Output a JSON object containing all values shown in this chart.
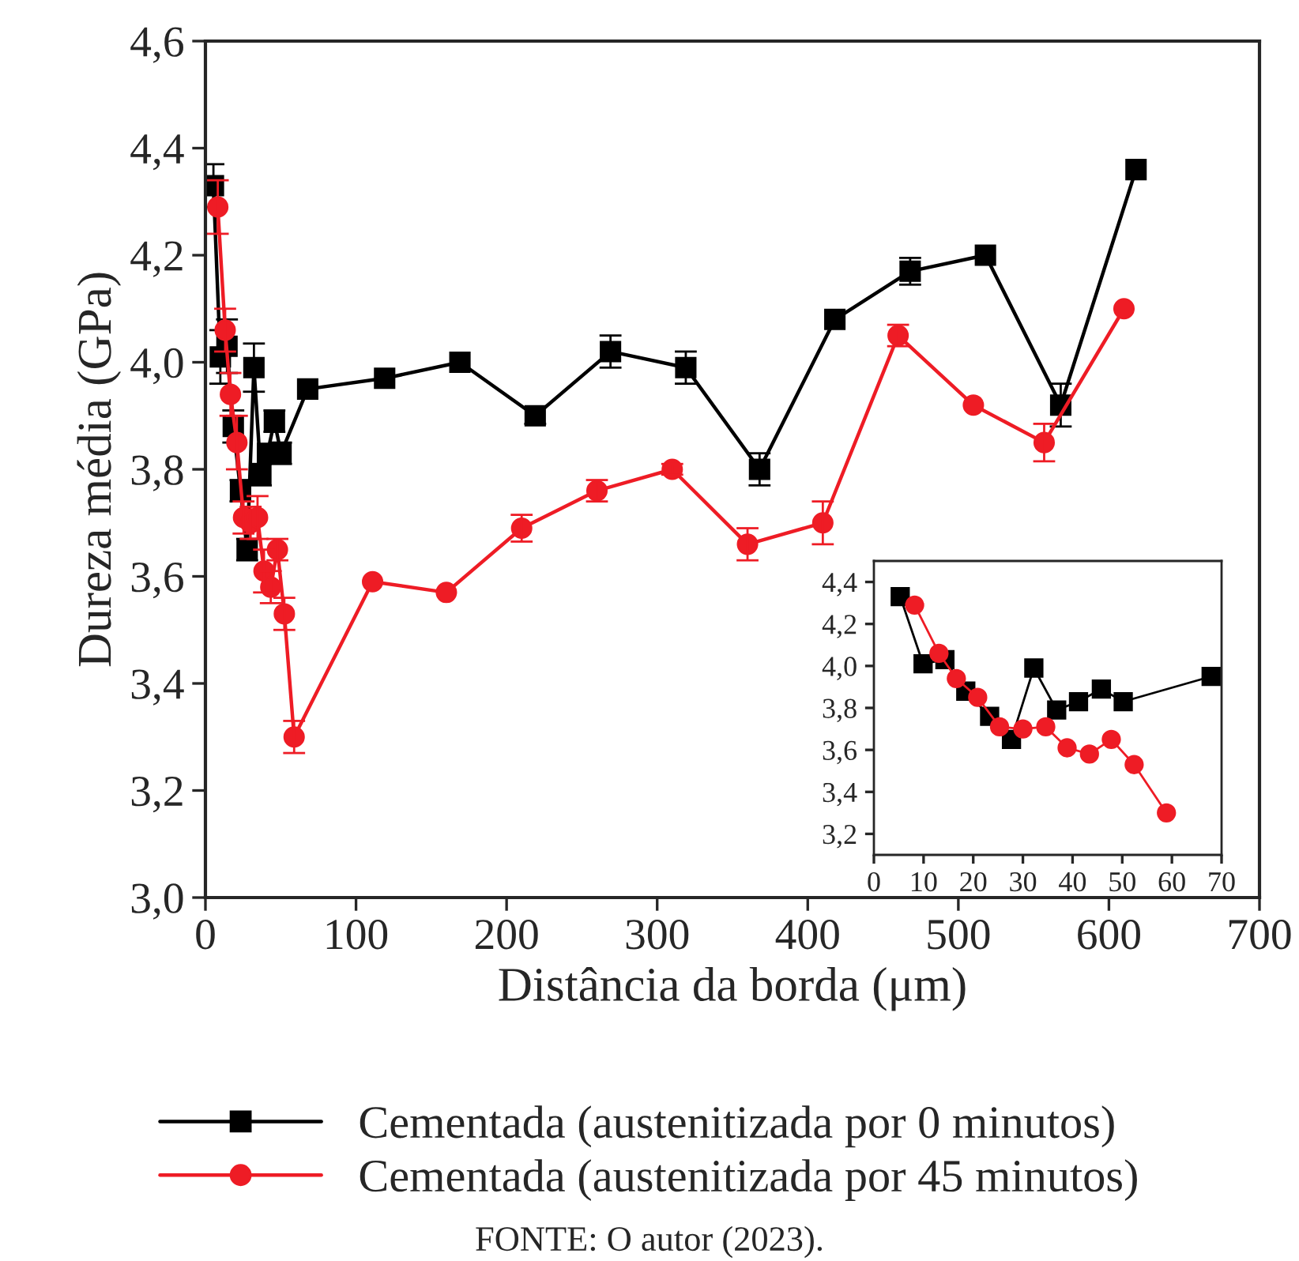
{
  "chart_data": [
    {
      "type": "line",
      "xlabel": "Distância da borda (μm)",
      "ylabel": "Dureza média (GPa)",
      "xlim": [
        0,
        700
      ],
      "xticks": [
        0,
        100,
        200,
        300,
        400,
        500,
        600,
        700
      ],
      "ylim": [
        3.0,
        4.6
      ],
      "yticks": [
        {
          "value": 3.0,
          "label": "3,0"
        },
        {
          "value": 3.2,
          "label": "3,2"
        },
        {
          "value": 3.4,
          "label": "3,4"
        },
        {
          "value": 3.6,
          "label": "3,6"
        },
        {
          "value": 3.8,
          "label": "3,8"
        },
        {
          "value": 4.0,
          "label": "4,0"
        },
        {
          "value": 4.2,
          "label": "4,2"
        },
        {
          "value": 4.4,
          "label": "4,4"
        },
        {
          "value": 4.6,
          "label": "4,6"
        }
      ],
      "legend": "bottom",
      "grid": false,
      "annotations": [
        "FONTE: O autor (2023)."
      ],
      "series": [
        {
          "name": "Cementada (austenitizada por 0 minutos)",
          "color": "#000000",
          "marker": "square",
          "x": [
            5.3,
            9.9,
            14.3,
            18.5,
            23.3,
            27.7,
            32.2,
            36.8,
            41.2,
            45.8,
            50.2,
            67.9,
            119,
            169,
            219,
            269,
            319,
            368,
            418,
            468,
            518,
            568,
            618
          ],
          "values": [
            4.33,
            4.01,
            4.03,
            3.88,
            3.76,
            3.65,
            3.99,
            3.79,
            3.83,
            3.89,
            3.83,
            3.95,
            3.97,
            4.0,
            3.9,
            4.02,
            3.99,
            3.8,
            4.08,
            4.17,
            4.2,
            3.92,
            4.36
          ],
          "errors": [
            0.04,
            0.05,
            0.05,
            0.03,
            0.02,
            0.02,
            0.045,
            0.02,
            null,
            0.02,
            0.02,
            null,
            null,
            null,
            0.015,
            0.03,
            0.03,
            0.03,
            null,
            0.025,
            null,
            0.04,
            null
          ]
        },
        {
          "name": "Cementada (austenitizada por 45 minutos)",
          "color": "#ee1c25",
          "marker": "circle",
          "x": [
            8.2,
            13.1,
            16.6,
            20.9,
            25.3,
            30.0,
            34.6,
            38.9,
            43.4,
            47.8,
            52.4,
            58.9,
            111,
            160,
            210,
            260,
            310,
            360,
            410,
            460,
            510,
            557,
            610
          ],
          "values": [
            4.29,
            4.06,
            3.94,
            3.85,
            3.71,
            3.7,
            3.71,
            3.61,
            3.58,
            3.65,
            3.53,
            3.3,
            3.59,
            3.57,
            3.69,
            3.76,
            3.8,
            3.66,
            3.7,
            4.05,
            3.92,
            3.85,
            4.1
          ],
          "errors": [
            0.05,
            0.04,
            0.04,
            0.05,
            0.03,
            0.03,
            0.04,
            0.04,
            0.03,
            0.02,
            0.03,
            0.03,
            null,
            null,
            0.025,
            0.02,
            0.01,
            0.03,
            0.04,
            0.02,
            null,
            0.035,
            null
          ]
        }
      ]
    },
    {
      "type": "line",
      "xlim": [
        0,
        70
      ],
      "xticks": [
        0,
        10,
        20,
        30,
        40,
        50,
        60,
        70
      ],
      "ylim": [
        3.1,
        4.5
      ],
      "yticks": [
        {
          "value": 3.2,
          "label": "3,2"
        },
        {
          "value": 3.4,
          "label": "3,4"
        },
        {
          "value": 3.6,
          "label": "3,6"
        },
        {
          "value": 3.8,
          "label": "3,8"
        },
        {
          "value": 4.0,
          "label": "4,0"
        },
        {
          "value": 4.2,
          "label": "4,2"
        },
        {
          "value": 4.4,
          "label": "4,4"
        }
      ],
      "grid": false,
      "series": [
        {
          "color": "#000000",
          "marker": "square",
          "x": [
            5.3,
            9.9,
            14.3,
            18.5,
            23.3,
            27.7,
            32.2,
            36.8,
            41.2,
            45.8,
            50.2,
            67.9
          ],
          "values": [
            4.33,
            4.01,
            4.03,
            3.88,
            3.76,
            3.65,
            3.99,
            3.79,
            3.83,
            3.89,
            3.83,
            3.95
          ]
        },
        {
          "color": "#ee1c25",
          "marker": "circle",
          "x": [
            8.2,
            13.1,
            16.6,
            20.9,
            25.3,
            30.0,
            34.6,
            38.9,
            43.4,
            47.8,
            52.4,
            58.9
          ],
          "values": [
            4.29,
            4.06,
            3.94,
            3.85,
            3.71,
            3.7,
            3.71,
            3.61,
            3.58,
            3.65,
            3.53,
            3.3
          ]
        }
      ]
    }
  ]
}
